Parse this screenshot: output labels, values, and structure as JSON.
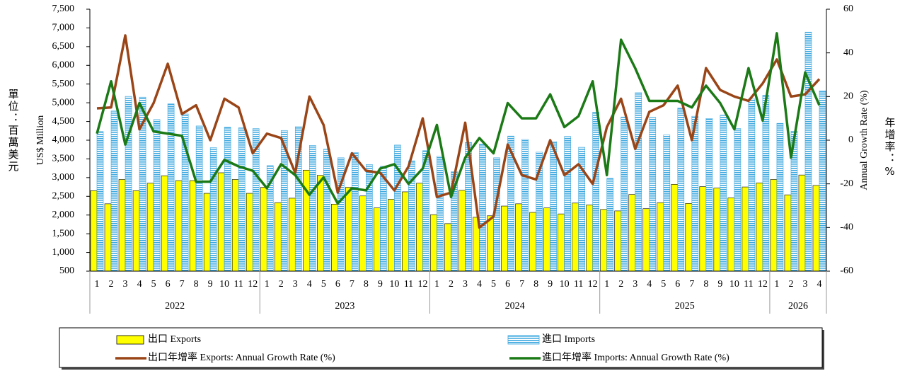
{
  "chart_data": {
    "type": "bar_line",
    "y_label": "US$ Million",
    "y_label_zh": "單位：百萬美元",
    "y2_label": "Annual Growth Rate (%)",
    "y2_label_zh": "年增率：%",
    "groups": [
      {
        "name": "2022",
        "categories": [
          "1",
          "2",
          "3",
          "4",
          "5",
          "6",
          "7",
          "8",
          "9",
          "10",
          "11",
          "12"
        ]
      },
      {
        "name": "2023",
        "categories": [
          "1",
          "2",
          "3",
          "4",
          "5",
          "6",
          "7",
          "8",
          "9",
          "10",
          "11",
          "12"
        ]
      },
      {
        "name": "2024",
        "categories": [
          "1",
          "2",
          "3",
          "4",
          "5",
          "6",
          "7",
          "8",
          "9",
          "10",
          "11",
          "12"
        ]
      },
      {
        "name": "2025",
        "categories": [
          "1",
          "2",
          "3",
          "4",
          "5",
          "6",
          "7",
          "8",
          "9",
          "10",
          "11",
          "12"
        ]
      },
      {
        "name": "2026",
        "categories": [
          "1",
          "2",
          "3",
          "4"
        ]
      }
    ],
    "ylim": [
      500,
      7500
    ],
    "yticks": [
      500,
      {
        "value": 1000,
        "label": "1,000"
      },
      {
        "value": 1500,
        "label": "1,500"
      },
      {
        "value": 2000,
        "label": "2,000"
      },
      {
        "value": 2500,
        "label": "2,500"
      },
      {
        "value": 3000,
        "label": "3,000"
      },
      {
        "value": 3500,
        "label": "3,500"
      },
      {
        "value": 4000,
        "label": "4,000"
      },
      {
        "value": 4500,
        "label": "4,500"
      },
      {
        "value": 5000,
        "label": "5,000"
      },
      {
        "value": 5500,
        "label": "5,500"
      },
      {
        "value": 6000,
        "label": "6,000"
      },
      {
        "value": 6500,
        "label": "6,500"
      },
      {
        "value": 7000,
        "label": "7,000"
      },
      {
        "value": 7500,
        "label": "7,500"
      }
    ],
    "y2lim": [
      -60,
      60
    ],
    "y2ticks": [
      -60,
      -40,
      -20,
      0,
      20,
      40,
      60
    ],
    "series": [
      {
        "name": "出口 Exports",
        "kind": "bar",
        "color": "#ffff00",
        "values": [
          2650,
          2300,
          2950,
          2650,
          2850,
          3050,
          2920,
          2920,
          2580,
          3130,
          2950,
          2580,
          2740,
          2330,
          2450,
          3200,
          3060,
          2290,
          2740,
          2510,
          2190,
          2420,
          2620,
          2850,
          2010,
          1770,
          2660,
          1940,
          1980,
          2240,
          2300,
          2070,
          2190,
          2030,
          2320,
          2270,
          2150,
          2110,
          2550,
          2170,
          2330,
          2820,
          2310,
          2760,
          2720,
          2460,
          2750,
          2860,
          2950,
          2540,
          3070,
          2790
        ]
      },
      {
        "name": "進口 Imports",
        "kind": "bar",
        "color": "#3fa9e0",
        "values": [
          4230,
          4780,
          5170,
          5150,
          4550,
          4970,
          4700,
          4380,
          3800,
          4350,
          4330,
          4310,
          3320,
          4260,
          4360,
          3860,
          3760,
          3530,
          3670,
          3350,
          3300,
          3870,
          3450,
          3720,
          3570,
          3160,
          3940,
          3900,
          3530,
          4110,
          4020,
          3680,
          3960,
          4100,
          3810,
          4750,
          2980,
          4620,
          5270,
          4610,
          4140,
          4860,
          4640,
          4580,
          4670,
          4310,
          5100,
          5200,
          4450,
          4240,
          6890,
          5320
        ]
      },
      {
        "name": "出口年增率 Exports: Annual Growth Rate (%)",
        "kind": "line",
        "axis": "y2",
        "color": "#9a4517",
        "values": [
          14.6,
          15,
          48,
          5,
          17,
          35,
          12,
          16,
          0,
          19,
          15,
          -6,
          3,
          1,
          -15,
          20,
          7,
          -24,
          -6,
          -14,
          -15,
          -23,
          -12,
          10,
          -26,
          -24,
          8,
          -40,
          -35,
          -2,
          -16,
          -18,
          0,
          -16,
          -11,
          -20,
          6,
          19,
          -4,
          13,
          16,
          25,
          0,
          33,
          23,
          20,
          18,
          26,
          37,
          20,
          21,
          28
        ]
      },
      {
        "name": "進口年增率 Imports: Annual Growth Rate (%)",
        "kind": "line",
        "axis": "y2",
        "color": "#1b7a16",
        "values": [
          3,
          27,
          -2,
          17,
          4,
          3,
          2,
          -19,
          -19,
          -9,
          -12,
          -14,
          -22,
          -11,
          -16,
          -25,
          -17,
          -29,
          -22,
          -23,
          -13,
          -11,
          -20,
          -13,
          7,
          -26,
          -8,
          1,
          -6,
          17,
          10,
          10,
          21,
          6,
          11,
          27,
          -16,
          46,
          33,
          18,
          18,
          18,
          15,
          25,
          17,
          5,
          33,
          9,
          49,
          -8,
          31,
          16
        ]
      }
    ]
  }
}
